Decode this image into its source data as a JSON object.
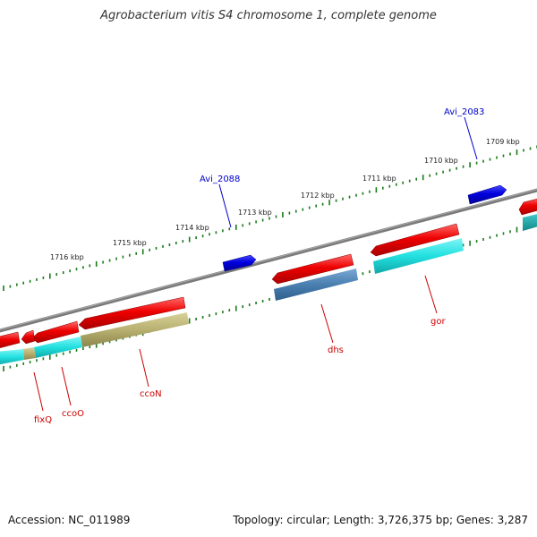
{
  "title": "Agrobacterium vitis S4 chromosome 1, complete genome",
  "footer": {
    "accession": "Accession: NC_011989",
    "summary": "Topology: circular; Length: 3,726,375 bp; Genes: 3,287"
  },
  "colors": {
    "backbone": "#808080",
    "tick": "#1a7a1a",
    "gene_forward": "#0000cc",
    "gene_reverse": "#dd0000",
    "cds_cyan": "#22dddd",
    "cds_olive": "#b8b070",
    "cds_steel": "#4a7fb0",
    "label_blue": "#0000cc",
    "label_red": "#cc0000"
  },
  "kbp_ticks": [
    "1709 kbp",
    "1710 kbp",
    "1711 kbp",
    "1712 kbp",
    "1713 kbp",
    "1714 kbp",
    "1715 kbp",
    "1716 kbp"
  ],
  "gene_labels": [
    {
      "id": "avi2083",
      "text": "Avi_2083",
      "color": "blue"
    },
    {
      "id": "avi2088",
      "text": "Avi_2088",
      "color": "blue"
    },
    {
      "id": "dhs",
      "text": "dhs",
      "color": "red"
    },
    {
      "id": "gor",
      "text": "gor",
      "color": "red"
    },
    {
      "id": "ccon",
      "text": "ccoN",
      "color": "red"
    },
    {
      "id": "ccoo",
      "text": "ccoO",
      "color": "red"
    },
    {
      "id": "fixq",
      "text": "fixQ",
      "color": "red"
    }
  ]
}
